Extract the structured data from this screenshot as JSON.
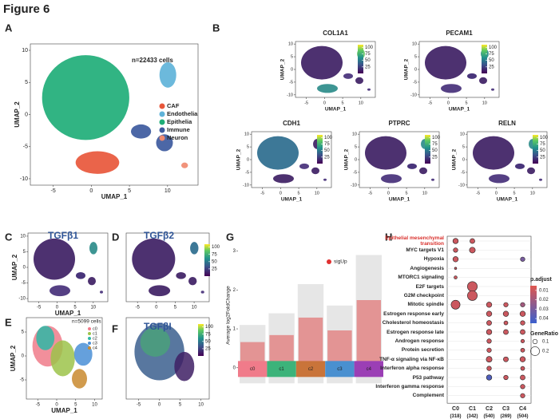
{
  "figure_title": "Figure 6",
  "panels": {
    "A": {
      "label": "A",
      "annotation": "n=22433 cells",
      "x_label": "UMAP_1",
      "y_label": "UMAP_2",
      "xlim": [
        -8,
        14
      ],
      "ylim": [
        -11,
        11
      ],
      "xticks": [
        -5,
        0,
        5,
        10
      ],
      "yticks": [
        -10,
        -5,
        0,
        5,
        10
      ],
      "legend": [
        {
          "name": "CAF",
          "color": "#e8573b"
        },
        {
          "name": "Endothelia",
          "color": "#5fb3d9"
        },
        {
          "name": "Epithelia",
          "color": "#1fae78"
        },
        {
          "name": "Immune",
          "color": "#3d5a9e"
        },
        {
          "name": "Neuron",
          "color": "#f08a70"
        }
      ]
    },
    "B": {
      "label": "B",
      "x_label": "UMAP_1",
      "y_label": "UMAP_2",
      "xlim": [
        -8,
        14
      ],
      "ylim": [
        -11,
        11
      ],
      "xticks": [
        -5,
        0,
        5,
        10
      ],
      "yticks": [
        -10,
        -5,
        0,
        5,
        10
      ],
      "colorbar_lim": [
        0,
        110
      ],
      "colorbar_ticks": [
        25,
        50,
        75,
        100
      ],
      "genes": [
        "COL1A1",
        "PECAM1",
        "CDH1",
        "PTPRC",
        "RELN"
      ]
    },
    "C": {
      "label": "C",
      "title": "TGFβ1",
      "x_label": "UMAP_1",
      "y_label": "UMAP_2",
      "xlim": [
        -8,
        14
      ],
      "ylim": [
        -11,
        11
      ],
      "xticks": [
        -5,
        0,
        5,
        10
      ],
      "yticks": [
        -10,
        -5,
        0,
        5,
        10
      ]
    },
    "D": {
      "label": "D",
      "title": "TGFβ2",
      "xlim": [
        -8,
        14
      ],
      "ylim": [
        -11,
        11
      ],
      "xticks": [
        -5,
        0,
        5,
        10
      ],
      "colorbar_lim": [
        0,
        110
      ],
      "colorbar_ticks": [
        25,
        50,
        75,
        100
      ]
    },
    "E": {
      "label": "E",
      "annotation": "n=5099 cells",
      "x_label": "UMAP_1",
      "y_label": "UMAP_2",
      "xlim": [
        -8,
        12
      ],
      "ylim": [
        -9,
        8
      ],
      "xticks": [
        -5,
        0,
        5,
        10
      ],
      "yticks": [
        -5,
        0,
        5
      ],
      "legend": [
        {
          "name": "c0",
          "color": "#f07b8a"
        },
        {
          "name": "c1",
          "color": "#9cc34a"
        },
        {
          "name": "c2",
          "color": "#2fb7a6"
        },
        {
          "name": "c3",
          "color": "#4a8fd6"
        },
        {
          "name": "c4",
          "color": "#c98a2e"
        }
      ]
    },
    "F": {
      "label": "F",
      "title": "TGFβI",
      "xlim": [
        -8,
        12
      ],
      "ylim": [
        -9,
        8
      ],
      "xticks": [
        -5,
        0,
        5,
        10
      ],
      "colorbar_lim": [
        0,
        110
      ],
      "colorbar_ticks": [
        25,
        50,
        75,
        100
      ]
    },
    "G": {
      "label": "G",
      "y_label": "Average log2FoldChange",
      "ylim": [
        -0.6,
        3.3
      ],
      "yticks": [
        0,
        1,
        2,
        3
      ],
      "legend": "sigUp",
      "clusters": [
        {
          "name": "c0",
          "color": "#f07b8a"
        },
        {
          "name": "c1",
          "color": "#3cb37a"
        },
        {
          "name": "c2",
          "color": "#c9743a"
        },
        {
          "name": "c3",
          "color": "#4a90d0"
        },
        {
          "name": "c4",
          "color": "#9b3fb5"
        }
      ]
    },
    "H": {
      "label": "H",
      "clusters": [
        "C0",
        "C1",
        "C2",
        "C3",
        "C4"
      ],
      "counts": [
        "(318)",
        "(342)",
        "(540)",
        "(269)",
        "(504)"
      ],
      "p_adjust_title": "p.adjust",
      "p_adjust_lim": [
        0.005,
        0.045
      ],
      "p_adjust_ticks": [
        0.01,
        0.02,
        0.03,
        0.04
      ],
      "gene_ratio_title": "GeneRatio",
      "gene_ratio_ticks": [
        0.1,
        0.2
      ],
      "terms": [
        {
          "term": "Epithelial mesenchymal transition",
          "gene_ratio": [
            0.12,
            0.11,
            null,
            null,
            null
          ],
          "p_adjust": [
            0.01,
            0.01,
            null,
            null,
            null
          ]
        },
        {
          "term": "MYC targets V1",
          "gene_ratio": [
            0.1,
            0.13,
            null,
            null,
            null
          ],
          "p_adjust": [
            0.01,
            0.01,
            null,
            null,
            null
          ]
        },
        {
          "term": "Hypoxia",
          "gene_ratio": [
            0.12,
            null,
            null,
            null,
            0.1
          ],
          "p_adjust": [
            0.01,
            null,
            null,
            null,
            0.03
          ]
        },
        {
          "term": "Angiogenesis",
          "gene_ratio": [
            0.05,
            null,
            null,
            null,
            null
          ],
          "p_adjust": [
            0.01,
            null,
            null,
            null,
            null
          ]
        },
        {
          "term": "MTORC1 signaling",
          "gene_ratio": [
            0.07,
            null,
            null,
            null,
            null
          ],
          "p_adjust": [
            0.01,
            null,
            null,
            null,
            null
          ]
        },
        {
          "term": "E2F targets",
          "gene_ratio": [
            null,
            0.22,
            null,
            null,
            null
          ],
          "p_adjust": [
            null,
            0.01,
            null,
            null,
            null
          ]
        },
        {
          "term": "G2M checkpoint",
          "gene_ratio": [
            null,
            0.22,
            null,
            null,
            null
          ],
          "p_adjust": [
            null,
            0.01,
            null,
            null,
            null
          ]
        },
        {
          "term": "Mitotic spindle",
          "gene_ratio": [
            0.2,
            null,
            0.12,
            0.1,
            0.1
          ],
          "p_adjust": [
            0.01,
            null,
            0.01,
            0.01,
            0.02
          ]
        },
        {
          "term": "Estrogen response early",
          "gene_ratio": [
            null,
            null,
            0.12,
            0.12,
            0.12
          ],
          "p_adjust": [
            null,
            null,
            0.01,
            0.01,
            0.01
          ]
        },
        {
          "term": "Cholesterol homeostasis",
          "gene_ratio": [
            null,
            null,
            0.11,
            0.09,
            0.1
          ],
          "p_adjust": [
            null,
            null,
            0.01,
            0.01,
            0.01
          ]
        },
        {
          "term": "Estrogen response late",
          "gene_ratio": [
            null,
            null,
            0.12,
            0.11,
            0.11
          ],
          "p_adjust": [
            null,
            null,
            0.01,
            0.01,
            0.01
          ]
        },
        {
          "term": "Androgen response",
          "gene_ratio": [
            null,
            null,
            0.1,
            null,
            0.08
          ],
          "p_adjust": [
            null,
            null,
            0.01,
            null,
            0.01
          ]
        },
        {
          "term": "Protein secretion",
          "gene_ratio": [
            null,
            null,
            0.1,
            null,
            0.09
          ],
          "p_adjust": [
            null,
            null,
            0.01,
            null,
            0.01
          ]
        },
        {
          "term": "TNF-α signaling via NF-κB",
          "gene_ratio": [
            null,
            null,
            0.13,
            0.11,
            0.12
          ],
          "p_adjust": [
            null,
            null,
            0.01,
            0.01,
            0.01
          ]
        },
        {
          "term": "Interferon alpha response",
          "gene_ratio": [
            null,
            null,
            0.1,
            null,
            0.09
          ],
          "p_adjust": [
            null,
            null,
            0.01,
            null,
            0.01
          ]
        },
        {
          "term": "P53 pathway",
          "gene_ratio": [
            null,
            null,
            0.12,
            0.1,
            0.11
          ],
          "p_adjust": [
            null,
            null,
            0.04,
            0.01,
            0.01
          ]
        },
        {
          "term": "Interferon gamma response",
          "gene_ratio": [
            null,
            null,
            null,
            null,
            0.1
          ],
          "p_adjust": [
            null,
            null,
            null,
            null,
            0.01
          ]
        },
        {
          "term": "Complement",
          "gene_ratio": [
            null,
            null,
            null,
            null,
            0.1
          ],
          "p_adjust": [
            null,
            null,
            null,
            null,
            0.01
          ]
        }
      ]
    }
  }
}
